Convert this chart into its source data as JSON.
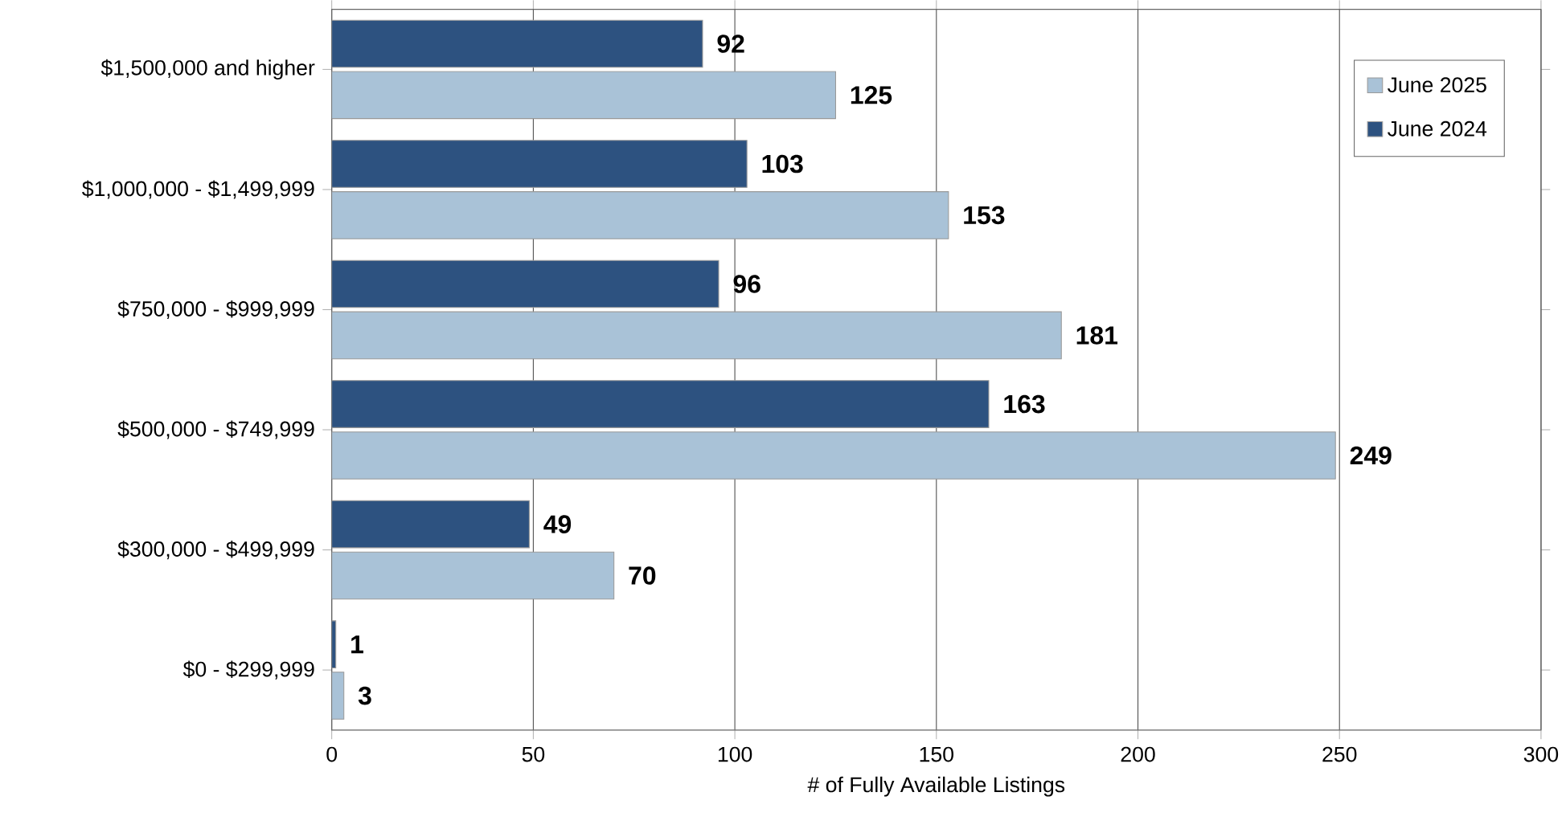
{
  "chart_data": {
    "type": "bar",
    "orientation": "horizontal",
    "xlabel": "# of Fully Available Listings",
    "categories": [
      "$1,500,000 and higher",
      "$1,000,000 - $1,499,999",
      "$750,000 - $999,999",
      "$500,000 - $749,999",
      "$300,000 - $499,999",
      "$0 - $299,999"
    ],
    "series": [
      {
        "name": "June 2025",
        "color": "#a9c2d7",
        "values": [
          125,
          153,
          181,
          249,
          70,
          3
        ]
      },
      {
        "name": "June 2024",
        "color": "#2d5280",
        "values": [
          92,
          103,
          96,
          163,
          49,
          1
        ]
      }
    ],
    "xlim": [
      0,
      300
    ],
    "xticks": [
      0,
      50,
      100,
      150,
      200,
      250,
      300
    ],
    "grid": "x",
    "legend": "top right",
    "data_labels": true
  }
}
